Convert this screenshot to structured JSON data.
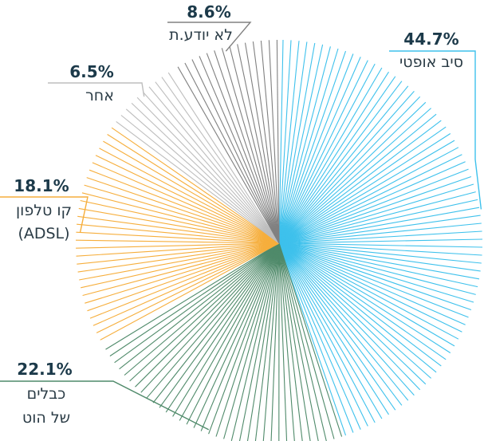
{
  "chart_data": {
    "type": "pie",
    "title": "",
    "style": "radial-lines",
    "slices": [
      {
        "id": "fiber",
        "percent_text": "44.7%",
        "value": 44.7,
        "label_lines": [
          "סיב אופטי"
        ],
        "color": "#3ec1ec"
      },
      {
        "id": "cable",
        "percent_text": "22.1%",
        "value": 22.1,
        "label_lines": [
          "כבלים",
          "של הוט"
        ],
        "color": "#4f8a6a"
      },
      {
        "id": "adsl",
        "percent_text": "18.1%",
        "value": 18.1,
        "label_lines": [
          "קו טלפון",
          "(ADSL)"
        ],
        "color": "#f6ae3c"
      },
      {
        "id": "other",
        "percent_text": "6.5%",
        "value": 6.5,
        "label_lines": [
          "אחר"
        ],
        "color": "#bdbdbd"
      },
      {
        "id": "unknown",
        "percent_text": "8.6%",
        "value": 8.6,
        "label_lines": [
          "לא יודע.ת"
        ],
        "color": "#808080"
      }
    ]
  }
}
